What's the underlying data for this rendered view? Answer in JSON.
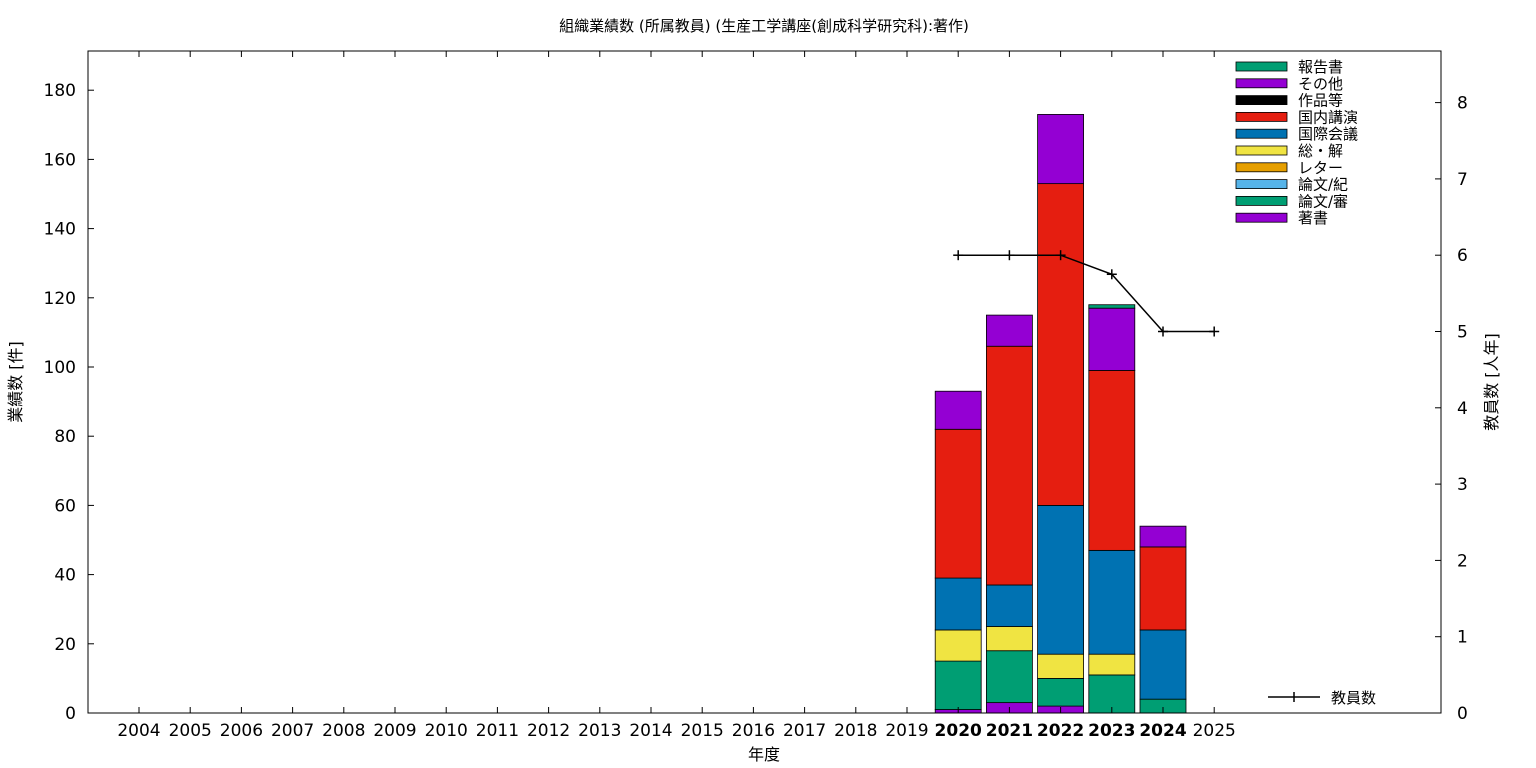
{
  "chart_data": {
    "type": "bar",
    "stacked": true,
    "title": "組織業績数 (所属教員) (生産工学講座(創成科学研究科):著作)",
    "xlabel": "年度",
    "ylabel": "業績数 [件]",
    "y2label": "教員数 [人年]",
    "categories": [
      "2004",
      "2005",
      "2006",
      "2007",
      "2008",
      "2009",
      "2010",
      "2011",
      "2012",
      "2013",
      "2014",
      "2015",
      "2016",
      "2017",
      "2018",
      "2019",
      "2020",
      "2021",
      "2022",
      "2023",
      "2024",
      "2025"
    ],
    "highlight_categories": [
      "2020",
      "2021",
      "2022",
      "2023",
      "2024"
    ],
    "ylim": [
      0,
      190
    ],
    "y2lim": [
      0,
      8.75
    ],
    "yticks": [
      0,
      20,
      40,
      60,
      80,
      100,
      120,
      140,
      160,
      180
    ],
    "y2ticks": [
      0,
      1,
      2,
      3,
      4,
      5,
      6,
      7,
      8
    ],
    "grid": false,
    "legend_position": "top-right",
    "series": [
      {
        "name": "著書",
        "color": "#9400d3",
        "values": [
          0,
          0,
          0,
          0,
          0,
          0,
          0,
          0,
          0,
          0,
          0,
          0,
          0,
          0,
          0,
          0,
          1,
          3,
          2,
          0,
          0,
          0
        ]
      },
      {
        "name": "論文/審",
        "color": "#009e73",
        "values": [
          0,
          0,
          0,
          0,
          0,
          0,
          0,
          0,
          0,
          0,
          0,
          0,
          0,
          0,
          0,
          0,
          14,
          15,
          8,
          11,
          4,
          0
        ]
      },
      {
        "name": "論文/紀",
        "color": "#56b4e9",
        "values": [
          0,
          0,
          0,
          0,
          0,
          0,
          0,
          0,
          0,
          0,
          0,
          0,
          0,
          0,
          0,
          0,
          0,
          0,
          0,
          0,
          0,
          0
        ]
      },
      {
        "name": "レター",
        "color": "#e69f00",
        "values": [
          0,
          0,
          0,
          0,
          0,
          0,
          0,
          0,
          0,
          0,
          0,
          0,
          0,
          0,
          0,
          0,
          0,
          0,
          0,
          0,
          0,
          0
        ]
      },
      {
        "name": "総・解",
        "color": "#f0e442",
        "values": [
          0,
          0,
          0,
          0,
          0,
          0,
          0,
          0,
          0,
          0,
          0,
          0,
          0,
          0,
          0,
          0,
          9,
          7,
          7,
          6,
          0,
          0
        ]
      },
      {
        "name": "国際会議",
        "color": "#0072b2",
        "values": [
          0,
          0,
          0,
          0,
          0,
          0,
          0,
          0,
          0,
          0,
          0,
          0,
          0,
          0,
          0,
          0,
          15,
          12,
          43,
          30,
          20,
          0
        ]
      },
      {
        "name": "国内講演",
        "color": "#e51e10",
        "values": [
          0,
          0,
          0,
          0,
          0,
          0,
          0,
          0,
          0,
          0,
          0,
          0,
          0,
          0,
          0,
          0,
          43,
          69,
          93,
          52,
          24,
          0
        ]
      },
      {
        "name": "作品等",
        "color": "#000000",
        "values": [
          0,
          0,
          0,
          0,
          0,
          0,
          0,
          0,
          0,
          0,
          0,
          0,
          0,
          0,
          0,
          0,
          0,
          0,
          0,
          0,
          0,
          0
        ]
      },
      {
        "name": "その他",
        "color": "#9400d3",
        "values": [
          0,
          0,
          0,
          0,
          0,
          0,
          0,
          0,
          0,
          0,
          0,
          0,
          0,
          0,
          0,
          0,
          11,
          9,
          20,
          18,
          6,
          0
        ]
      },
      {
        "name": "報告書",
        "color": "#009e73",
        "values": [
          0,
          0,
          0,
          0,
          0,
          0,
          0,
          0,
          0,
          0,
          0,
          0,
          0,
          0,
          0,
          0,
          0,
          0,
          0,
          1,
          0,
          0
        ]
      }
    ],
    "line_series": {
      "name": "教員数",
      "color": "#000000",
      "axis": "y2",
      "x": [
        "2020",
        "2021",
        "2022",
        "2023",
        "2024",
        "2025"
      ],
      "values": [
        6,
        6,
        6,
        5.75,
        5,
        5
      ]
    }
  }
}
